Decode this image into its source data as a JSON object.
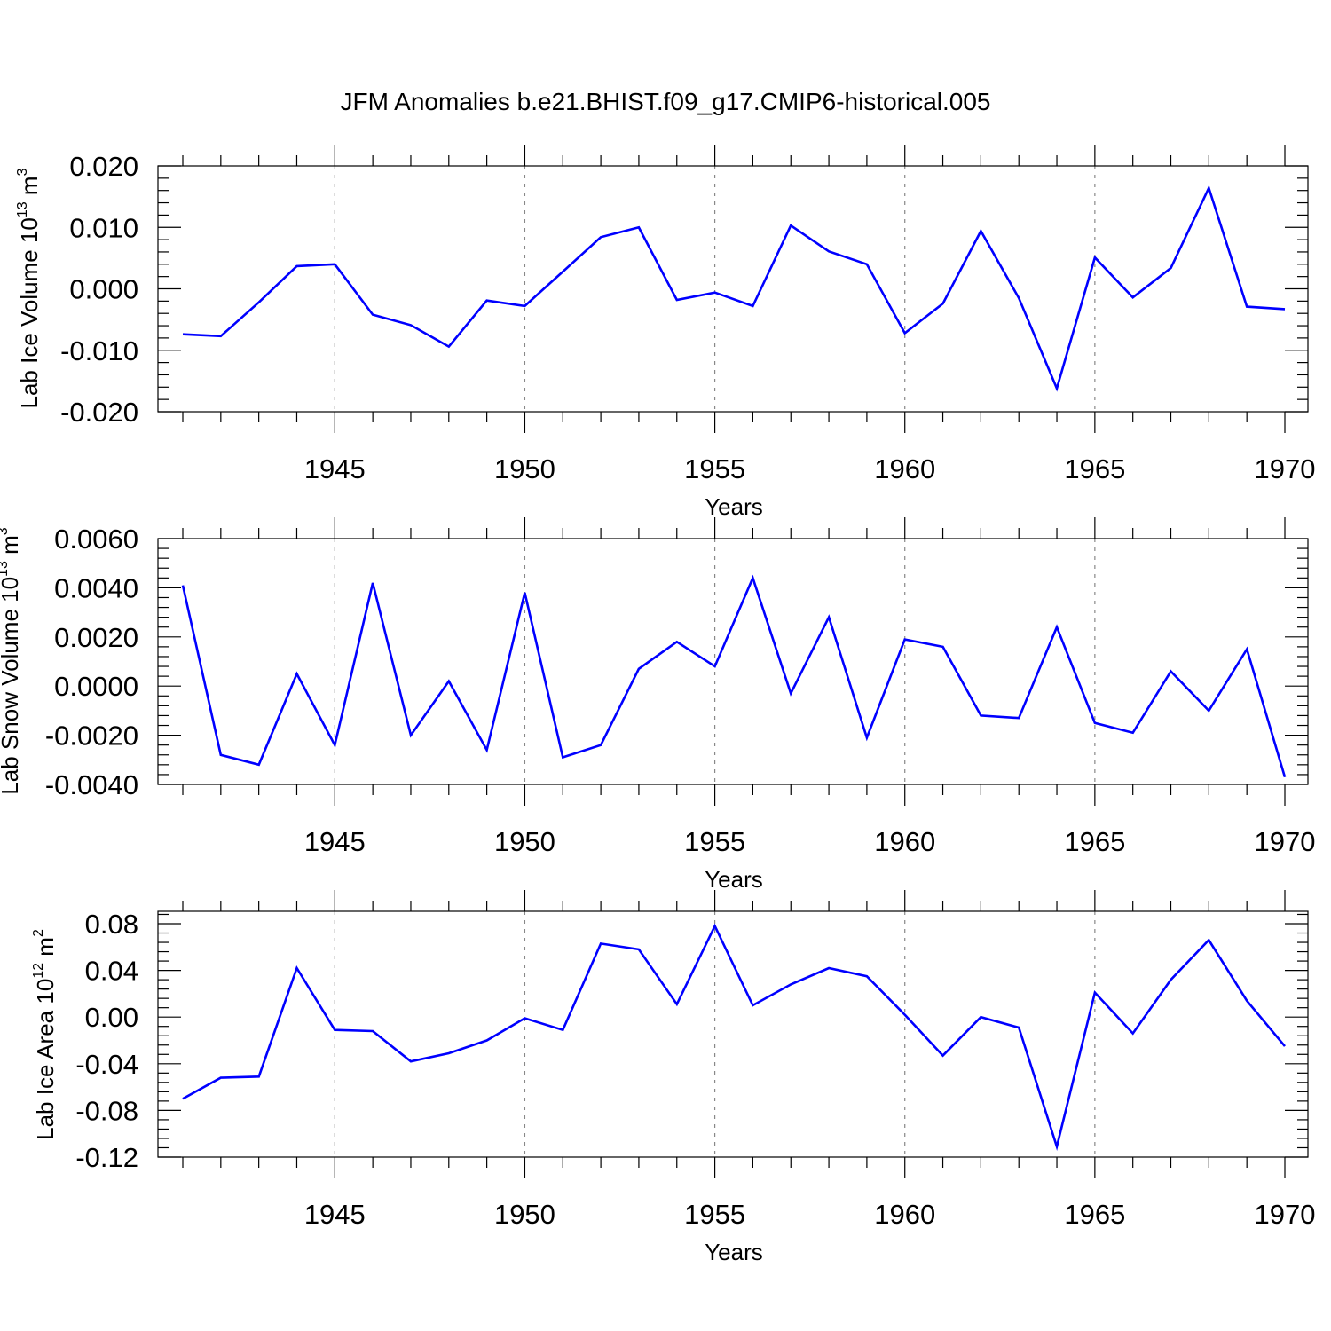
{
  "page": {
    "title": "JFM Anomalies b.e21.BHIST.f09_g17.CMIP6-historical.005"
  },
  "colors": {
    "line": "#0000ff",
    "axis": "#000000",
    "grid": "#888888"
  },
  "chart_data": [
    {
      "type": "line",
      "title": "JFM Anomalies b.e21.BHIST.f09_g17.CMIP6-historical.005",
      "xlabel": "Years",
      "ylabel": {
        "main": "Lab Ice Volume 10",
        "exp": "13",
        "unit": " m",
        "unit_exp": "3"
      },
      "xlim": [
        1941,
        1970
      ],
      "ylim": [
        -0.02,
        0.02
      ],
      "yticks": [
        -0.02,
        -0.01,
        0.0,
        0.01,
        0.02
      ],
      "ytick_labels": [
        "-0.020",
        "-0.010",
        "0.000",
        "0.010",
        "0.020"
      ],
      "xticks": [
        1945,
        1950,
        1955,
        1960,
        1965,
        1970
      ],
      "xtick_labels": [
        "1945",
        "1950",
        "1955",
        "1960",
        "1965",
        "1970"
      ],
      "vgrid": [
        1945,
        1950,
        1955,
        1960,
        1965
      ],
      "x": [
        1941,
        1942,
        1943,
        1944,
        1945,
        1946,
        1947,
        1948,
        1949,
        1950,
        1951,
        1952,
        1953,
        1954,
        1955,
        1956,
        1957,
        1958,
        1959,
        1960,
        1961,
        1962,
        1963,
        1964,
        1965,
        1966,
        1967,
        1968,
        1969,
        1970
      ],
      "series": [
        {
          "values": [
            -0.0074,
            -0.0077,
            -0.0022,
            0.0037,
            0.004,
            -0.0042,
            -0.0059,
            -0.0094,
            -0.0019,
            -0.0028,
            0.0028,
            0.0084,
            0.01,
            -0.0018,
            -0.0006,
            -0.0028,
            0.0103,
            0.0061,
            0.004,
            -0.0072,
            -0.0024,
            0.0094,
            -0.0015,
            -0.0162,
            0.0051,
            -0.0014,
            0.0034,
            0.0164,
            -0.0029,
            -0.0033
          ]
        }
      ]
    },
    {
      "type": "line",
      "xlabel": "Years",
      "ylabel": {
        "main": "Lab Snow Volume 10",
        "exp": "13",
        "unit": " m",
        "unit_exp": "3"
      },
      "xlim": [
        1941,
        1970
      ],
      "ylim": [
        -0.004,
        0.006
      ],
      "yticks": [
        -0.004,
        -0.002,
        0.0,
        0.002,
        0.004,
        0.006
      ],
      "ytick_labels": [
        "-0.0040",
        "-0.0020",
        "0.0000",
        "0.0020",
        "0.0040",
        "0.0060"
      ],
      "xticks": [
        1945,
        1950,
        1955,
        1960,
        1965,
        1970
      ],
      "xtick_labels": [
        "1945",
        "1950",
        "1955",
        "1960",
        "1965",
        "1970"
      ],
      "vgrid": [
        1945,
        1950,
        1955,
        1960,
        1965
      ],
      "x": [
        1941,
        1942,
        1943,
        1944,
        1945,
        1946,
        1947,
        1948,
        1949,
        1950,
        1951,
        1952,
        1953,
        1954,
        1955,
        1956,
        1957,
        1958,
        1959,
        1960,
        1961,
        1962,
        1963,
        1964,
        1965,
        1966,
        1967,
        1968,
        1969,
        1970
      ],
      "series": [
        {
          "values": [
            0.0041,
            -0.0028,
            -0.0032,
            0.0005,
            -0.0024,
            0.0042,
            -0.002,
            0.0002,
            -0.0026,
            0.0038,
            -0.0029,
            -0.0024,
            0.0007,
            0.0018,
            0.0008,
            0.0044,
            -0.0003,
            0.0028,
            -0.0021,
            0.0019,
            0.0016,
            -0.0012,
            -0.0013,
            0.0024,
            -0.0015,
            -0.0019,
            0.0006,
            -0.001,
            0.0015,
            -0.0037
          ]
        }
      ]
    },
    {
      "type": "line",
      "xlabel": "Years",
      "ylabel": {
        "main": "Lab Ice Area 10",
        "exp": "12",
        "unit": " m",
        "unit_exp": "2"
      },
      "xlim": [
        1941,
        1970
      ],
      "ylim": [
        -0.12,
        0.09
      ],
      "yticks": [
        -0.12,
        -0.08,
        -0.04,
        0.0,
        0.04,
        0.08
      ],
      "ytick_labels": [
        "-0.12",
        "-0.08",
        "-0.04",
        "0.00",
        "0.04",
        "0.08"
      ],
      "xticks": [
        1945,
        1950,
        1955,
        1960,
        1965,
        1970
      ],
      "xtick_labels": [
        "1945",
        "1950",
        "1955",
        "1960",
        "1965",
        "1970"
      ],
      "vgrid": [
        1945,
        1950,
        1955,
        1960,
        1965
      ],
      "x": [
        1941,
        1942,
        1943,
        1944,
        1945,
        1946,
        1947,
        1948,
        1949,
        1950,
        1951,
        1952,
        1953,
        1954,
        1955,
        1956,
        1957,
        1958,
        1959,
        1960,
        1961,
        1962,
        1963,
        1964,
        1965,
        1966,
        1967,
        1968,
        1969,
        1970
      ],
      "series": [
        {
          "values": [
            -0.07,
            -0.052,
            -0.051,
            0.042,
            -0.011,
            -0.012,
            -0.038,
            -0.031,
            -0.02,
            -0.001,
            -0.011,
            0.063,
            0.058,
            0.011,
            0.078,
            0.01,
            0.028,
            0.042,
            0.035,
            0.002,
            -0.033,
            0.0,
            -0.009,
            -0.111,
            0.021,
            -0.014,
            0.032,
            0.066,
            0.014,
            -0.025
          ]
        }
      ]
    }
  ]
}
